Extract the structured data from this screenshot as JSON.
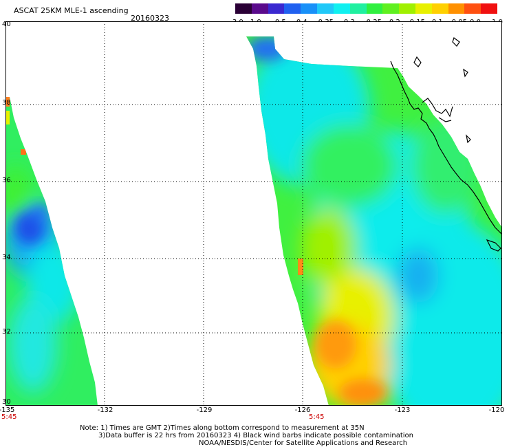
{
  "header": {
    "title": "ASCAT 25KM MLE-1 ascending",
    "date": "20160323"
  },
  "colorbar": {
    "labels": [
      "-3.0",
      "-1.0",
      "-0.5",
      "-0.4",
      "-0.35",
      "-0.3",
      "-0.25",
      "-0.2",
      "-0.15",
      "-0.1",
      "-0.05",
      "0.0",
      "1.0"
    ],
    "colors": [
      "#2a0036",
      "#5a0a8c",
      "#3a28d0",
      "#2060f0",
      "#1890f8",
      "#20c8f8",
      "#10f0f0",
      "#20f0a0",
      "#30f040",
      "#60f020",
      "#a0f000",
      "#e8f000",
      "#ffd000",
      "#ff9000",
      "#ff5010",
      "#f01010"
    ]
  },
  "chart_data": {
    "type": "heatmap",
    "title": "ASCAT 25KM MLE-1 ascending",
    "date": "20160323",
    "xlim": [
      -135,
      -120
    ],
    "ylim": [
      30,
      40
    ],
    "x_ticks": [
      "-135",
      "-132",
      "-129",
      "-126",
      "-123",
      "-120"
    ],
    "y_ticks": [
      "40",
      "38",
      "36",
      "34",
      "32",
      "30"
    ],
    "grid": true,
    "swath_times": [
      {
        "lon": -135,
        "label": "5:45"
      },
      {
        "lon": -126,
        "label": "5:45"
      }
    ],
    "value_range": [
      -3.0,
      1.0
    ],
    "regions": [
      {
        "swath": "west",
        "lat": [
          37.5,
          38.2
        ],
        "value": -0.05
      },
      {
        "swath": "west",
        "lat": [
          36.5,
          37.5
        ],
        "value": -0.2
      },
      {
        "swath": "west",
        "lat": [
          34.6,
          36.0
        ],
        "value": -0.38
      },
      {
        "swath": "west",
        "lat": [
          30.0,
          33.0
        ],
        "value": -0.22
      },
      {
        "swath": "east",
        "lat": [
          38.5,
          40.0
        ],
        "value": -0.3
      },
      {
        "swath": "east",
        "lat": [
          33.0,
          35.5
        ],
        "value": -0.12
      },
      {
        "swath": "east",
        "lat": [
          30.0,
          32.5
        ],
        "value": -0.02
      },
      {
        "swath": "east",
        "lat": [
          30.0,
          36.0
        ],
        "value": -0.27
      }
    ]
  },
  "notes": {
    "line1": "Note: 1) Times are GMT 2)Times along bottom correspond to measurement at 35N",
    "line2": "3)Data buffer is 22 hrs from 20160323 4) Black wind barbs indicate possible contamination",
    "line3": "NOAA/NESDIS/Center for Satellite Applications and Research"
  }
}
